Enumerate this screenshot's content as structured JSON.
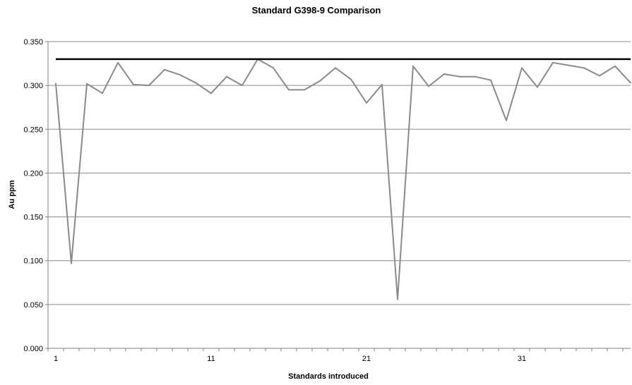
{
  "chart_data": {
    "type": "line",
    "title": "Standard G398-9 Comparison",
    "xlabel": "Standards introduced",
    "ylabel": "Au ppm",
    "ylim": [
      0,
      0.35
    ],
    "ytick_labels": [
      "0.000",
      "0.050",
      "0.100",
      "0.150",
      "0.200",
      "0.250",
      "0.300",
      "0.350"
    ],
    "yticks": [
      0,
      0.05,
      0.1,
      0.15,
      0.2,
      0.25,
      0.3,
      0.35
    ],
    "xtick_labels": [
      "1",
      "11",
      "21",
      "31"
    ],
    "xticks": [
      1,
      11,
      21,
      31
    ],
    "xlim": [
      0.5,
      38
    ],
    "grid": "horizontal",
    "x": [
      1,
      2,
      3,
      4,
      5,
      6,
      7,
      8,
      9,
      10,
      11,
      12,
      13,
      14,
      15,
      16,
      17,
      18,
      19,
      20,
      21,
      22,
      23,
      24,
      25,
      26,
      27,
      28,
      29,
      30,
      31,
      32,
      33,
      34,
      35,
      36,
      37,
      38
    ],
    "series": [
      {
        "color": "#8a8a8a",
        "values": [
          0.302,
          0.097,
          0.302,
          0.291,
          0.326,
          0.301,
          0.3,
          0.318,
          0.312,
          0.303,
          0.291,
          0.31,
          0.3,
          0.33,
          0.32,
          0.295,
          0.295,
          0.305,
          0.32,
          0.307,
          0.28,
          0.301,
          0.056,
          0.322,
          0.299,
          0.313,
          0.31,
          0.31,
          0.306,
          0.26,
          0.32,
          0.298,
          0.326,
          0.323,
          0.32,
          0.311,
          0.322,
          0.303
        ]
      },
      {
        "color": "#000000",
        "values": [
          0.33,
          0.33,
          0.33,
          0.33,
          0.33,
          0.33,
          0.33,
          0.33,
          0.33,
          0.33,
          0.33,
          0.33,
          0.33,
          0.33,
          0.33,
          0.33,
          0.33,
          0.33,
          0.33,
          0.33,
          0.33,
          0.33,
          0.33,
          0.33,
          0.33,
          0.33,
          0.33,
          0.33,
          0.33,
          0.33,
          0.33,
          0.33,
          0.33,
          0.33,
          0.33,
          0.33,
          0.33,
          0.33
        ]
      }
    ]
  }
}
